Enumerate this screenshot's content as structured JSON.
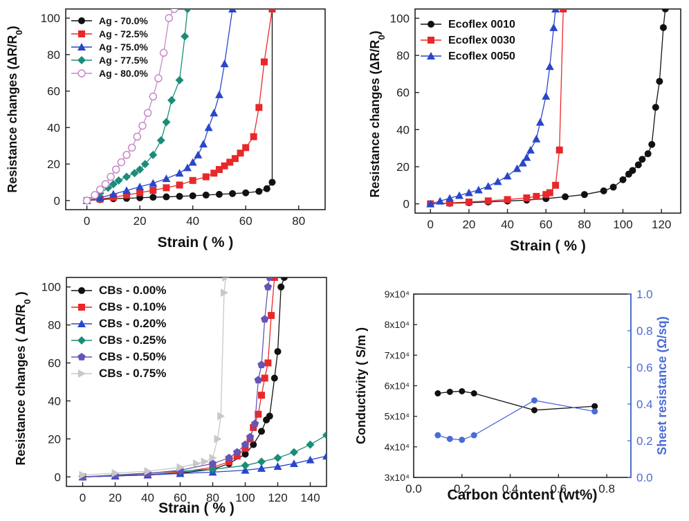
{
  "chart_data": [
    {
      "type": "line",
      "xlabel": "Strain ( % )",
      "ylabel": "Resistance changes (ΔR/R0)",
      "xlim": [
        -8,
        90
      ],
      "ylim": [
        -5,
        105
      ],
      "xticks": [
        0,
        20,
        40,
        60,
        80
      ],
      "yticks": [
        0,
        20,
        40,
        60,
        80,
        100
      ],
      "legend": "top-left",
      "series": [
        {
          "name": "Ag - 70.0%",
          "color": "#111111",
          "marker": "circle",
          "x": [
            0,
            5,
            10,
            15,
            20,
            25,
            30,
            35,
            40,
            45,
            50,
            55,
            60,
            65,
            68,
            70,
            70
          ],
          "y": [
            0,
            0.5,
            1,
            1.2,
            1.5,
            1.8,
            2,
            2.3,
            2.6,
            3,
            3.4,
            3.8,
            4.2,
            5,
            6.5,
            10,
            105
          ]
        },
        {
          "name": "Ag - 72.5%",
          "color": "#e8282a",
          "marker": "square",
          "x": [
            0,
            5,
            10,
            15,
            20,
            25,
            30,
            35,
            40,
            45,
            48,
            50,
            52,
            54,
            56,
            58,
            60,
            63,
            65,
            67,
            70
          ],
          "y": [
            0,
            0.8,
            1.8,
            3,
            4.3,
            5.6,
            7,
            8.5,
            11,
            13,
            15,
            17,
            19,
            21,
            23,
            26,
            29,
            35,
            51,
            76,
            105
          ]
        },
        {
          "name": "Ag - 75.0%",
          "color": "#2a47c8",
          "marker": "triangle",
          "x": [
            0,
            5,
            10,
            15,
            20,
            25,
            30,
            35,
            38,
            40,
            42,
            44,
            46,
            48,
            50,
            52,
            55
          ],
          "y": [
            0,
            1.5,
            3.5,
            5.5,
            7.5,
            9.5,
            12,
            15,
            18,
            21,
            25,
            31,
            40,
            48,
            58,
            75,
            105
          ]
        },
        {
          "name": "Ag - 77.5%",
          "color": "#1a8c78",
          "marker": "diamond",
          "x": [
            0,
            5,
            8,
            10,
            12,
            15,
            18,
            20,
            22,
            25,
            28,
            30,
            32,
            35,
            37,
            38
          ],
          "y": [
            0,
            4,
            7,
            9,
            11,
            13,
            15,
            17,
            20,
            25,
            33,
            43,
            55,
            66,
            90,
            105
          ]
        },
        {
          "name": "Ag - 80.0%",
          "color": "#c788c8",
          "marker": "circle-open",
          "x": [
            0,
            3,
            5,
            7,
            9,
            11,
            13,
            15,
            17,
            19,
            21,
            23,
            25,
            27,
            29,
            31,
            33
          ],
          "y": [
            0,
            3,
            6,
            9,
            13,
            17,
            21,
            25,
            29,
            35,
            41,
            48,
            57,
            67,
            81,
            100,
            105
          ]
        }
      ]
    },
    {
      "type": "line",
      "xlabel": "Strain ( % )",
      "ylabel": "Resistance changes (ΔR/R0)",
      "xlim": [
        -8,
        130
      ],
      "ylim": [
        -5,
        105
      ],
      "xticks": [
        0,
        20,
        40,
        60,
        80,
        100,
        120
      ],
      "yticks": [
        0,
        20,
        40,
        60,
        80,
        100
      ],
      "legend": "top-left",
      "series": [
        {
          "name": "Ecoflex 0010",
          "color": "#111111",
          "marker": "circle",
          "x": [
            0,
            10,
            20,
            30,
            40,
            50,
            60,
            70,
            80,
            90,
            95,
            100,
            103,
            105,
            108,
            110,
            113,
            115,
            117,
            119,
            121,
            122
          ],
          "y": [
            0,
            0.3,
            0.6,
            1,
            1.5,
            2,
            2.8,
            3.8,
            5,
            7,
            9,
            13,
            16,
            18,
            21,
            24,
            27,
            32,
            52,
            66,
            95,
            105
          ]
        },
        {
          "name": "Ecoflex 0030",
          "color": "#e8282a",
          "marker": "square",
          "x": [
            0,
            10,
            20,
            30,
            40,
            50,
            55,
            60,
            62,
            65,
            67,
            69
          ],
          "y": [
            0,
            0.5,
            1,
            1.6,
            2.3,
            3.2,
            4,
            5,
            6,
            10,
            29,
            105
          ]
        },
        {
          "name": "Ecoflex 0050",
          "color": "#2a47c8",
          "marker": "triangle",
          "x": [
            0,
            5,
            10,
            15,
            20,
            25,
            30,
            35,
            40,
            45,
            48,
            50,
            52,
            55,
            57,
            60,
            62,
            64,
            65
          ],
          "y": [
            0,
            1.5,
            3,
            4.5,
            6,
            7.5,
            9.5,
            12,
            15,
            19,
            22,
            25,
            29,
            35,
            44,
            58,
            74,
            95,
            105
          ]
        }
      ]
    },
    {
      "type": "line",
      "xlabel": "Strain ( % )",
      "ylabel": "Resistance changes ( ΔR/R0 )",
      "xlim": [
        -10,
        150
      ],
      "ylim": [
        -5,
        105
      ],
      "xticks": [
        0,
        20,
        40,
        60,
        80,
        100,
        120,
        140
      ],
      "yticks": [
        0,
        20,
        40,
        60,
        80,
        100
      ],
      "legend": "top-left",
      "series": [
        {
          "name": "CBs - 0.00%",
          "color": "#111111",
          "marker": "circle",
          "x": [
            0,
            20,
            40,
            60,
            80,
            90,
            100,
            105,
            110,
            113,
            115,
            118,
            120,
            122,
            124
          ],
          "y": [
            0,
            0.5,
            1,
            2,
            4,
            7,
            12,
            17,
            24,
            30,
            32,
            52,
            66,
            100,
            105
          ]
        },
        {
          "name": "CBs - 0.10%",
          "color": "#e8282a",
          "marker": "square",
          "x": [
            0,
            20,
            40,
            60,
            80,
            90,
            95,
            100,
            103,
            105,
            108,
            110,
            112,
            114,
            116,
            118
          ],
          "y": [
            0,
            0.5,
            1.2,
            2.5,
            5,
            8,
            11,
            15,
            20,
            26,
            33,
            43,
            52,
            60,
            85,
            105
          ]
        },
        {
          "name": "CBs - 0.20%",
          "color": "#2a47c8",
          "marker": "triangle",
          "x": [
            0,
            20,
            40,
            60,
            80,
            100,
            110,
            120,
            130,
            140,
            150
          ],
          "y": [
            0,
            0.5,
            1,
            1.8,
            2.5,
            3.5,
            4.5,
            5.5,
            7,
            9,
            11
          ]
        },
        {
          "name": "CBs - 0.25%",
          "color": "#1a8c78",
          "marker": "diamond",
          "x": [
            0,
            20,
            40,
            60,
            80,
            100,
            110,
            120,
            130,
            140,
            150
          ],
          "y": [
            0,
            1,
            2,
            3,
            4,
            6,
            8,
            10,
            13,
            17,
            22
          ]
        },
        {
          "name": "CBs - 0.50%",
          "color": "#6655b5",
          "marker": "pentagon",
          "x": [
            0,
            20,
            40,
            60,
            80,
            90,
            95,
            100,
            103,
            106,
            108,
            110,
            112,
            114,
            115
          ],
          "y": [
            0,
            0.8,
            1.8,
            3.5,
            7,
            10,
            13,
            17,
            21,
            28,
            51,
            59,
            83,
            100,
            105
          ]
        },
        {
          "name": "CBs - 0.75%",
          "color": "#c8c8c8",
          "marker": "triangle-right",
          "x": [
            0,
            20,
            40,
            60,
            70,
            75,
            80,
            83,
            85,
            87,
            88
          ],
          "y": [
            1,
            2,
            3,
            5,
            7,
            8,
            10,
            20,
            32,
            97,
            105
          ]
        }
      ]
    },
    {
      "type": "line",
      "xlabel": "Carbon content (wt%)",
      "ylabel": "Conductivity ( S/m )",
      "ylabel_right": "Sheet resistance (Ω/sq)",
      "xlim": [
        0,
        0.9
      ],
      "ylim": [
        30000,
        90000
      ],
      "ylim_right": [
        0,
        1.0
      ],
      "xticks": [
        0.0,
        0.2,
        0.4,
        0.6,
        0.8
      ],
      "yticks_labels": [
        "3x10⁴",
        "4x10⁴",
        "5x10⁴",
        "6x10⁴",
        "7x10⁴",
        "8x10⁴",
        "9x10⁴"
      ],
      "yticks_right": [
        "0.0",
        "0.2",
        "0.4",
        "0.6",
        "0.8",
        "1.0"
      ],
      "series": [
        {
          "name": "Conductivity",
          "axis": "left",
          "color": "#111111",
          "x": [
            0.1,
            0.15,
            0.2,
            0.25,
            0.5,
            0.75
          ],
          "y": [
            57500,
            58000,
            58200,
            57500,
            52000,
            53300
          ]
        },
        {
          "name": "Sheet resistance",
          "axis": "right",
          "color": "#4a6cd4",
          "x": [
            0.1,
            0.15,
            0.2,
            0.25,
            0.5,
            0.75
          ],
          "y": [
            0.23,
            0.21,
            0.205,
            0.23,
            0.42,
            0.36
          ]
        }
      ]
    }
  ]
}
